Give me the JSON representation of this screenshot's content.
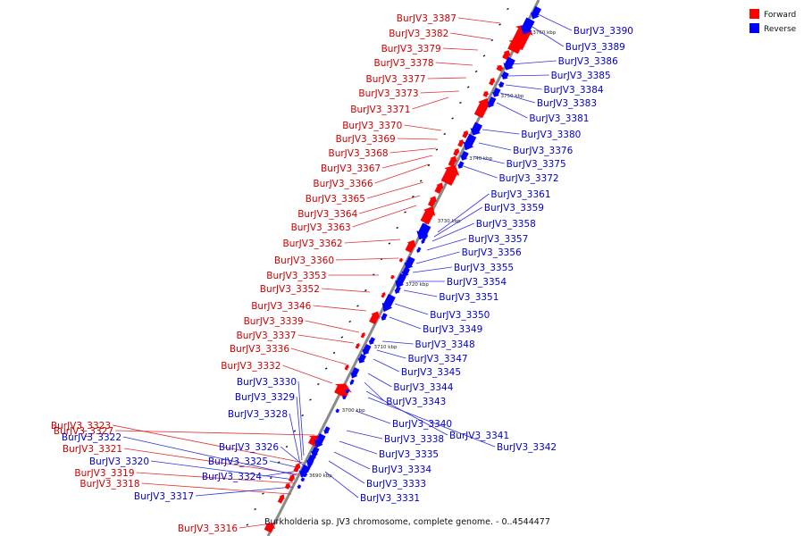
{
  "caption": "Burkholderia sp. JV3 chromosome, complete genome. - 0..4544477",
  "legend": [
    {
      "label": "Forward",
      "color": "#ff0000"
    },
    {
      "label": "Reverse",
      "color": "#0000ff"
    }
  ],
  "ticks": [
    "3760 kbp",
    "3750 kbp",
    "3740 kbp",
    "3730 kbp",
    "3720 kbp",
    "3710 kbp",
    "3700 kbp",
    "3690 kbp"
  ],
  "forward_genes": [
    "BurJV3_3387",
    "BurJV3_3382",
    "BurJV3_3379",
    "BurJV3_3378",
    "BurJV3_3377",
    "BurJV3_3373",
    "BurJV3_3371",
    "BurJV3_3370",
    "BurJV3_3369",
    "BurJV3_3368",
    "BurJV3_3367",
    "BurJV3_3366",
    "BurJV3_3365",
    "BurJV3_3364",
    "BurJV3_3363",
    "BurJV3_3362",
    "BurJV3_3360",
    "BurJV3_3353",
    "BurJV3_3352",
    "BurJV3_3346",
    "BurJV3_3339",
    "BurJV3_3337",
    "BurJV3_3336",
    "BurJV3_3332",
    "BurJV3_3327",
    "BurJV3_3323",
    "BurJV3_3321",
    "BurJV3_3319",
    "BurJV3_3318",
    "BurJV3_3316"
  ],
  "reverse_genes": [
    "BurJV3_3390",
    "BurJV3_3389",
    "BurJV3_3386",
    "BurJV3_3385",
    "BurJV3_3384",
    "BurJV3_3383",
    "BurJV3_3381",
    "BurJV3_3380",
    "BurJV3_3376",
    "BurJV3_3375",
    "BurJV3_3372",
    "BurJV3_3361",
    "BurJV3_3359",
    "BurJV3_3358",
    "BurJV3_3357",
    "BurJV3_3356",
    "BurJV3_3355",
    "BurJV3_3354",
    "BurJV3_3351",
    "BurJV3_3350",
    "BurJV3_3349",
    "BurJV3_3348",
    "BurJV3_3347",
    "BurJV3_3345",
    "BurJV3_3344",
    "BurJV3_3343",
    "BurJV3_3341",
    "BurJV3_3342",
    "BurJV3_3340",
    "BurJV3_3338",
    "BurJV3_3335",
    "BurJV3_3334",
    "BurJV3_3333",
    "BurJV3_3331",
    "BurJV3_3330",
    "BurJV3_3329",
    "BurJV3_3328",
    "BurJV3_3326",
    "BurJV3_3325",
    "BurJV3_3324",
    "BurJV3_3322",
    "BurJV3_3320",
    "BurJV3_3317"
  ]
}
